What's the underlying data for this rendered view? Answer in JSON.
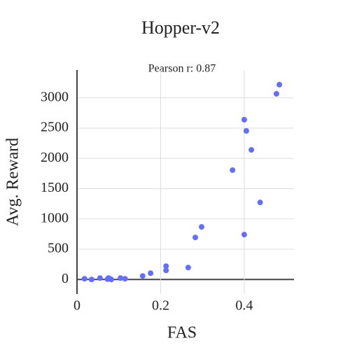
{
  "chart_data": {
    "type": "scatter",
    "title": "Hopper-v2",
    "annotation": "Pearson r: 0.87",
    "x_label": "FAS",
    "y_label": "Avg. Reward",
    "x": [
      0.018,
      0.035,
      0.055,
      0.075,
      0.079,
      0.082,
      0.073,
      0.104,
      0.115,
      0.157,
      0.176,
      0.213,
      0.213,
      0.266,
      0.283,
      0.298,
      0.372,
      0.4,
      0.405,
      0.417,
      0.4,
      0.438,
      0.477,
      0.484
    ],
    "values": [
      12,
      0,
      23,
      23,
      12,
      0,
      5,
      23,
      12,
      58,
      104,
      220,
      150,
      197,
      694,
      868,
      1806,
      2639,
      2454,
      2141,
      741,
      1273,
      3067,
      3218
    ],
    "color": "#636efa",
    "xlim": [
      0,
      0.519
    ],
    "ylim": [
      -240,
      3460
    ],
    "xticks": [
      0,
      0.2,
      0.4
    ],
    "yticks": [
      0,
      500,
      1000,
      1500,
      2000,
      2500,
      3000
    ],
    "grid": true
  }
}
